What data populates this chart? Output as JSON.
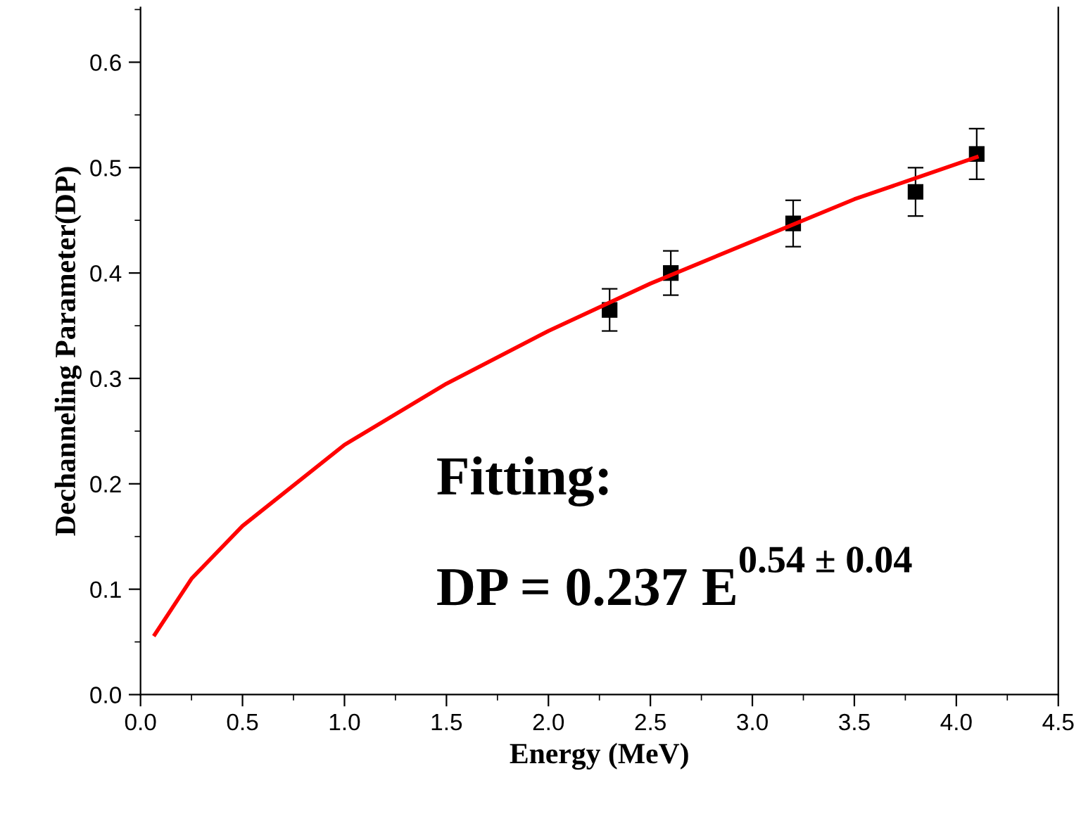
{
  "chart_data": {
    "type": "scatter",
    "xlabel": "Energy (MeV)",
    "ylabel": "Dechanneling Parameter(DP)",
    "annotations": [
      "Fitting:",
      "DP = 0.237 E$^{0.54 ± 0.04}$"
    ],
    "series": [
      {
        "color": "#000000",
        "marker": "square",
        "x": [
          2.3,
          2.6,
          3.2,
          3.8,
          4.1
        ],
        "values": [
          0.365,
          0.4,
          0.447,
          0.477,
          0.513
        ],
        "errors": [
          0.02,
          0.021,
          0.022,
          0.023,
          0.024
        ]
      },
      {
        "type": "line",
        "color": "#ff0000",
        "marker": "none",
        "line_style": "solid",
        "x": [
          0.07,
          0.25,
          0.5,
          1.0,
          1.5,
          2.0,
          2.5,
          3.0,
          3.5,
          4.1
        ],
        "values": [
          0.057,
          0.11,
          0.16,
          0.237,
          0.295,
          0.345,
          0.39,
          0.43,
          0.47,
          0.51
        ]
      }
    ],
    "xlim": [
      0,
      4.5
    ],
    "ylim": [
      0,
      0.652
    ],
    "xticks": [
      {
        "value": 0,
        "label": "0.0"
      },
      0.5,
      {
        "value": 1,
        "label": "1.0"
      },
      1.5,
      {
        "value": 2,
        "label": "2.0"
      },
      2.5,
      {
        "value": 3,
        "label": "3.0"
      },
      3.5,
      {
        "value": 4,
        "label": "4.0"
      },
      4.5
    ],
    "yticks": [
      {
        "value": 0,
        "label": "0.0"
      },
      0.1,
      0.2,
      0.3,
      0.4,
      0.5,
      0.6
    ],
    "grid": false,
    "legend": false
  }
}
